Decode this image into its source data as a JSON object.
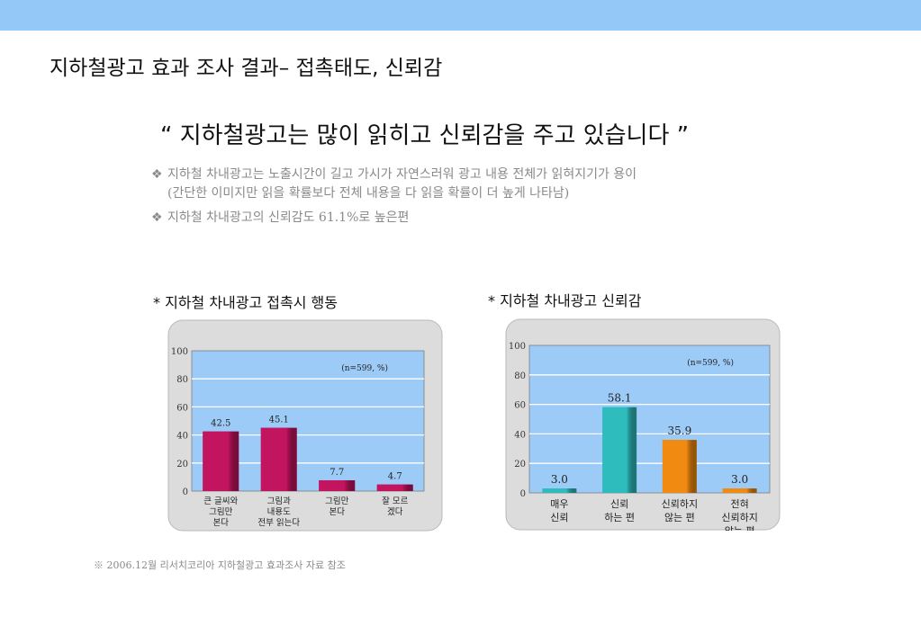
{
  "slide": {
    "title": "지하철광고 효과 조사 결과– 접촉태도, 신뢰감",
    "headline": "“ 지하철광고는 많이 읽히고 신뢰감을 주고 있습니다 ”",
    "bullet_mark": "❖",
    "bullets": [
      {
        "line1": "지하철 차내광고는 노출시간이 길고 가시가 자연스러워 광고 내용 전체가 읽혀지기가 용이",
        "line2": "(간단한 이미지만 읽을 확률보다 전체 내용을 다 읽을 확률이 더 높게 나타남)"
      },
      {
        "line1": "지하철 차내광고의 신뢰감도 61.1%로 높은편"
      }
    ],
    "footnote": "※ 2006.12월 리서치코리아 지하철광고 효과조사 자료 참조"
  },
  "colors": {
    "top_band": "#93c8f7",
    "plot_background": "#9dcbf7",
    "panel_background": "#dcdcdc",
    "chart1_bar": "#c2145f",
    "chart2_bars": [
      "#2fbcbc",
      "#2fbcbc",
      "#f08a10",
      "#f08a10"
    ]
  },
  "chart_data": [
    {
      "type": "bar",
      "title": "* 지하철 차내광고 접촉시 행동",
      "note": "(n=599, %)",
      "categories": [
        [
          "큰 글씨와",
          "그림만",
          "본다"
        ],
        [
          "그림과",
          "내용도",
          "전부 읽는다"
        ],
        [
          "그림만",
          "본다"
        ],
        [
          "잘 모르",
          "겠다"
        ]
      ],
      "values": [
        42.5,
        45.1,
        7.7,
        4.7
      ],
      "value_labels": [
        "42.5",
        "45.1",
        "7.7",
        "4.7"
      ],
      "ylim": [
        0,
        100
      ],
      "yticks": [
        0,
        20,
        40,
        60,
        80,
        100
      ],
      "grid": true,
      "legend": "none"
    },
    {
      "type": "bar",
      "title": "*  지하철 차내광고 신뢰감",
      "note": "(n=599, %)",
      "categories": [
        [
          "매우",
          "신뢰"
        ],
        [
          "신뢰",
          "하는 편"
        ],
        [
          "신뢰하지",
          "않는 편"
        ],
        [
          "전혀",
          "신뢰하지",
          "않는 편"
        ]
      ],
      "values": [
        3.0,
        58.1,
        35.9,
        3.0
      ],
      "value_labels": [
        "3.0",
        "58.1",
        "35.9",
        "3.0"
      ],
      "ylim": [
        0,
        100
      ],
      "yticks": [
        0,
        20,
        40,
        60,
        80,
        100
      ],
      "grid": true,
      "legend": "none"
    }
  ]
}
